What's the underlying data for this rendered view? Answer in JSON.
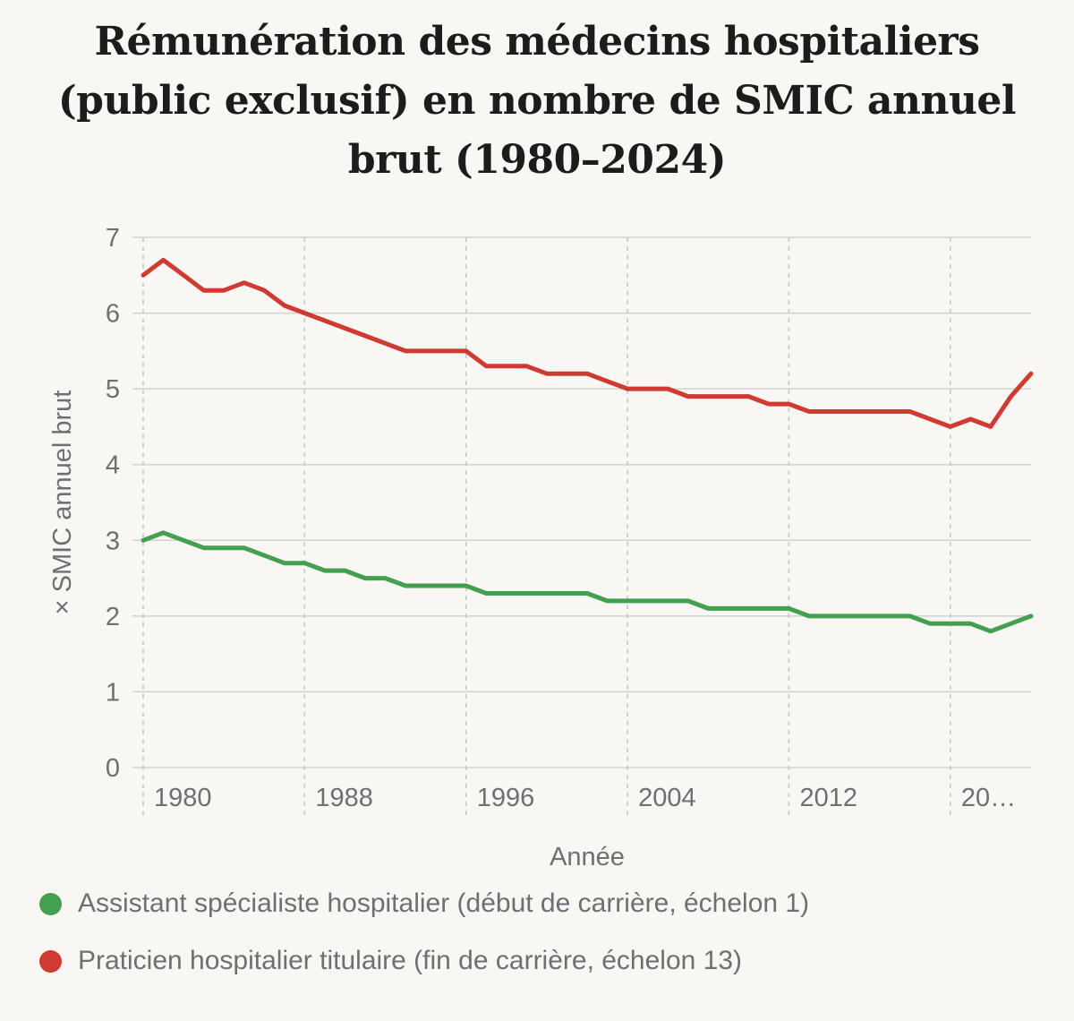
{
  "chart_data": {
    "type": "line",
    "title": "Rémunération des médecins hospitaliers (public exclusif) en nombre de SMIC annuel brut (1980–2024)",
    "xlabel": "Année",
    "ylabel": "× SMIC annuel brut",
    "ylim": [
      0,
      7
    ],
    "yticks": [
      "0",
      "1",
      "2",
      "3",
      "4",
      "5",
      "6",
      "7"
    ],
    "xlim": [
      1980,
      2024
    ],
    "xticks": [
      {
        "year": 1980,
        "label": "1980"
      },
      {
        "year": 1988,
        "label": "1988"
      },
      {
        "year": 1996,
        "label": "1996"
      },
      {
        "year": 2004,
        "label": "2004"
      },
      {
        "year": 2012,
        "label": "2012"
      },
      {
        "year": 2020,
        "label": "20…"
      }
    ],
    "grid": {
      "horizontal": true,
      "vertical_dashed": true
    },
    "legend_position": "bottom",
    "x": [
      1980,
      1981,
      1982,
      1983,
      1984,
      1985,
      1986,
      1987,
      1988,
      1989,
      1990,
      1991,
      1992,
      1993,
      1994,
      1995,
      1996,
      1997,
      1998,
      1999,
      2000,
      2001,
      2002,
      2003,
      2004,
      2005,
      2006,
      2007,
      2008,
      2009,
      2010,
      2011,
      2012,
      2013,
      2014,
      2015,
      2016,
      2017,
      2018,
      2019,
      2020,
      2021,
      2022,
      2023,
      2024
    ],
    "series": [
      {
        "name": "Assistant spécialiste hospitalier (début de carrière, échelon 1)",
        "color": "#44a04e",
        "values": [
          3.0,
          3.1,
          3.0,
          2.9,
          2.9,
          2.9,
          2.8,
          2.7,
          2.7,
          2.6,
          2.6,
          2.5,
          2.5,
          2.4,
          2.4,
          2.4,
          2.4,
          2.3,
          2.3,
          2.3,
          2.3,
          2.3,
          2.3,
          2.2,
          2.2,
          2.2,
          2.2,
          2.2,
          2.1,
          2.1,
          2.1,
          2.1,
          2.1,
          2.0,
          2.0,
          2.0,
          2.0,
          2.0,
          2.0,
          1.9,
          1.9,
          1.9,
          1.8,
          1.9,
          2.0
        ]
      },
      {
        "name": "Praticien hospitalier titulaire (fin de carrière, échelon 13)",
        "color": "#cf3b32",
        "values": [
          6.5,
          6.7,
          6.5,
          6.3,
          6.3,
          6.4,
          6.3,
          6.1,
          6.0,
          5.9,
          5.8,
          5.7,
          5.6,
          5.5,
          5.5,
          5.5,
          5.5,
          5.3,
          5.3,
          5.3,
          5.2,
          5.2,
          5.2,
          5.1,
          5.0,
          5.0,
          5.0,
          4.9,
          4.9,
          4.9,
          4.9,
          4.8,
          4.8,
          4.7,
          4.7,
          4.7,
          4.7,
          4.7,
          4.7,
          4.6,
          4.5,
          4.6,
          4.5,
          4.9,
          5.2
        ]
      }
    ]
  }
}
